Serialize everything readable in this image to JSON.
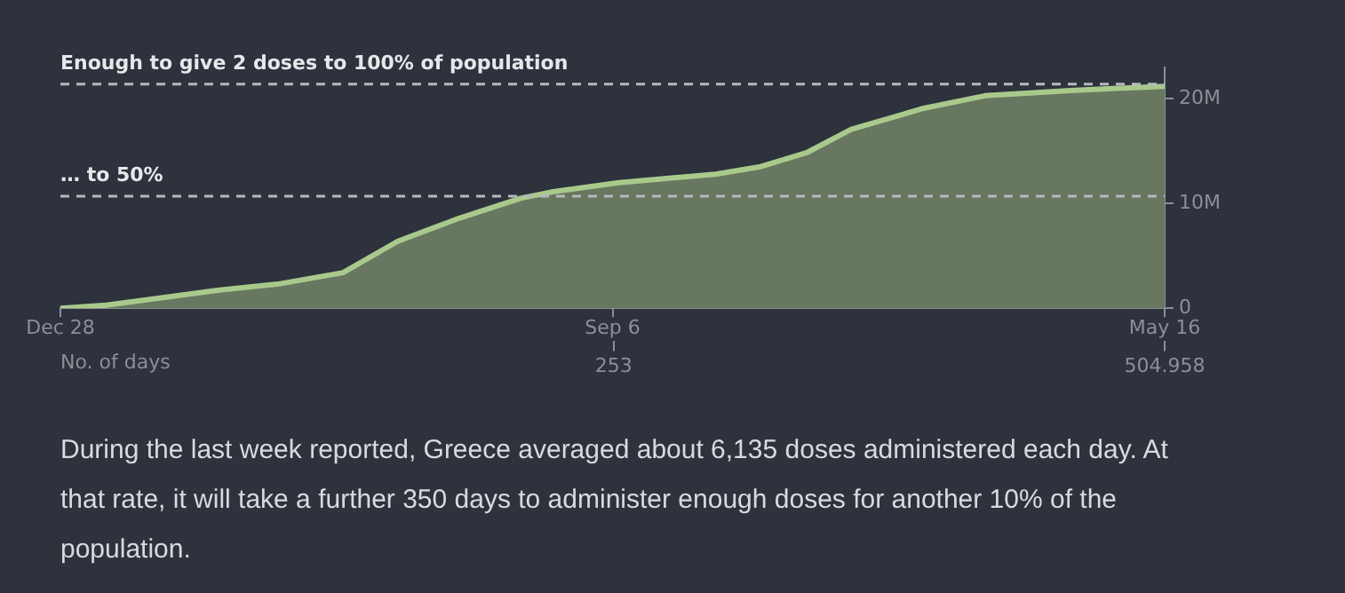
{
  "chart_data": {
    "type": "area",
    "x": [
      0,
      21,
      43,
      71,
      99,
      129,
      154,
      182,
      210,
      224,
      255,
      271,
      299,
      319,
      341,
      361,
      394,
      422,
      461,
      482,
      504.958
    ],
    "series": [
      {
        "color": "#a9c98c",
        "values": [
          0,
          0.3,
          0.9,
          1.7,
          2.3,
          3.4,
          6.4,
          8.6,
          10.5,
          11.1,
          12.0,
          12.3,
          12.8,
          13.5,
          14.9,
          17.1,
          19.1,
          20.3,
          20.8,
          21.0,
          21.2
        ]
      }
    ],
    "xlim": [
      0,
      504.958
    ],
    "xticks": [
      253,
      504.958
    ],
    "xlabel": "No. of days",
    "x2lim": [
      "--12-28",
      "--05-16"
    ],
    "x2ticks": [
      {
        "value": "--12-28",
        "label": "Dec 28"
      },
      {
        "value": "--09-06",
        "label": "Sep 6"
      },
      {
        "value": "--05-16",
        "label": "May 16"
      }
    ],
    "ylim": [
      0,
      23
    ],
    "yticks": [
      0,
      {
        "value": 10,
        "label": "10M"
      },
      {
        "value": 20,
        "label": "20M"
      }
    ],
    "ref_lines": [
      {
        "axis": "y",
        "value": 21.4,
        "label": "Enough to give 2 doses to 100% of population",
        "color": "#b5b8bd",
        "line_style": "dashed"
      },
      {
        "axis": "y",
        "value": 10.7,
        "label": "… to 50%",
        "color": "#b5b8bd",
        "line_style": "dashed"
      }
    ],
    "grid": false,
    "legend": false,
    "annotations": [
      "During the last week reported, Greece averaged about 6,135 doses administered each day. At that rate, it will take a further 350 days to administer enough doses for another 10% of the population."
    ]
  }
}
